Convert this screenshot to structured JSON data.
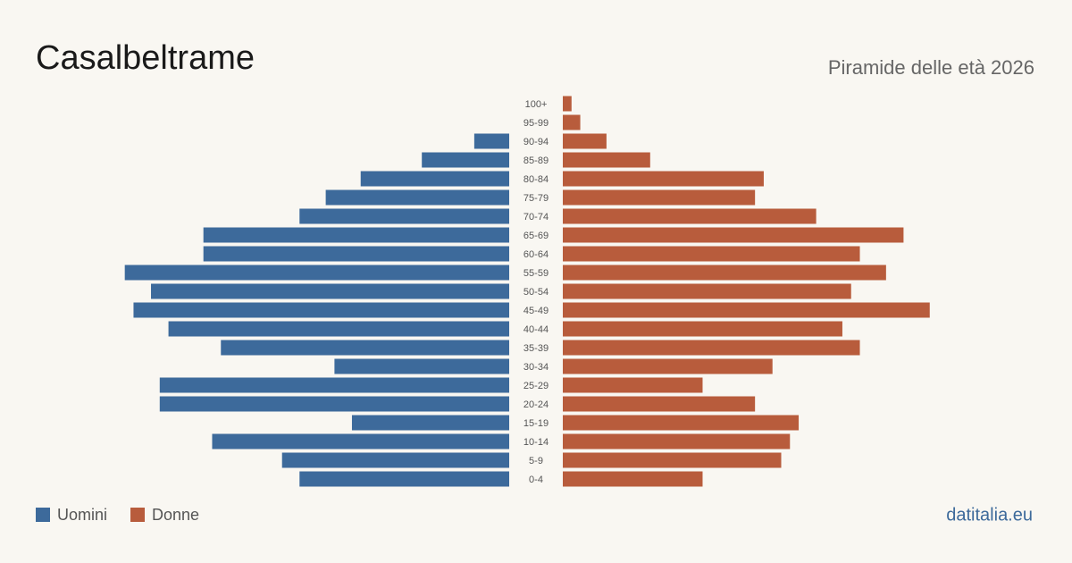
{
  "chart_data": {
    "type": "pyramid",
    "title": "Casalbeltrame",
    "subtitle": "Piramide delle età 2026",
    "source": "datitalia.eu",
    "categories": [
      "100+",
      "95-99",
      "90-94",
      "85-89",
      "80-84",
      "75-79",
      "70-74",
      "65-69",
      "60-64",
      "55-59",
      "50-54",
      "45-49",
      "40-44",
      "35-39",
      "30-34",
      "25-29",
      "20-24",
      "15-19",
      "10-14",
      "5-9",
      "0-4"
    ],
    "series": [
      {
        "name": "Uomini",
        "color": "#3d6a9b",
        "values": [
          0,
          0,
          4,
          10,
          17,
          21,
          24,
          35,
          35,
          44,
          41,
          43,
          39,
          33,
          20,
          40,
          40,
          18,
          34,
          26,
          24
        ]
      },
      {
        "name": "Donne",
        "color": "#b85c3c",
        "values": [
          1,
          2,
          5,
          10,
          23,
          22,
          29,
          39,
          34,
          37,
          33,
          42,
          32,
          34,
          24,
          16,
          22,
          27,
          26,
          25,
          16
        ]
      }
    ]
  }
}
